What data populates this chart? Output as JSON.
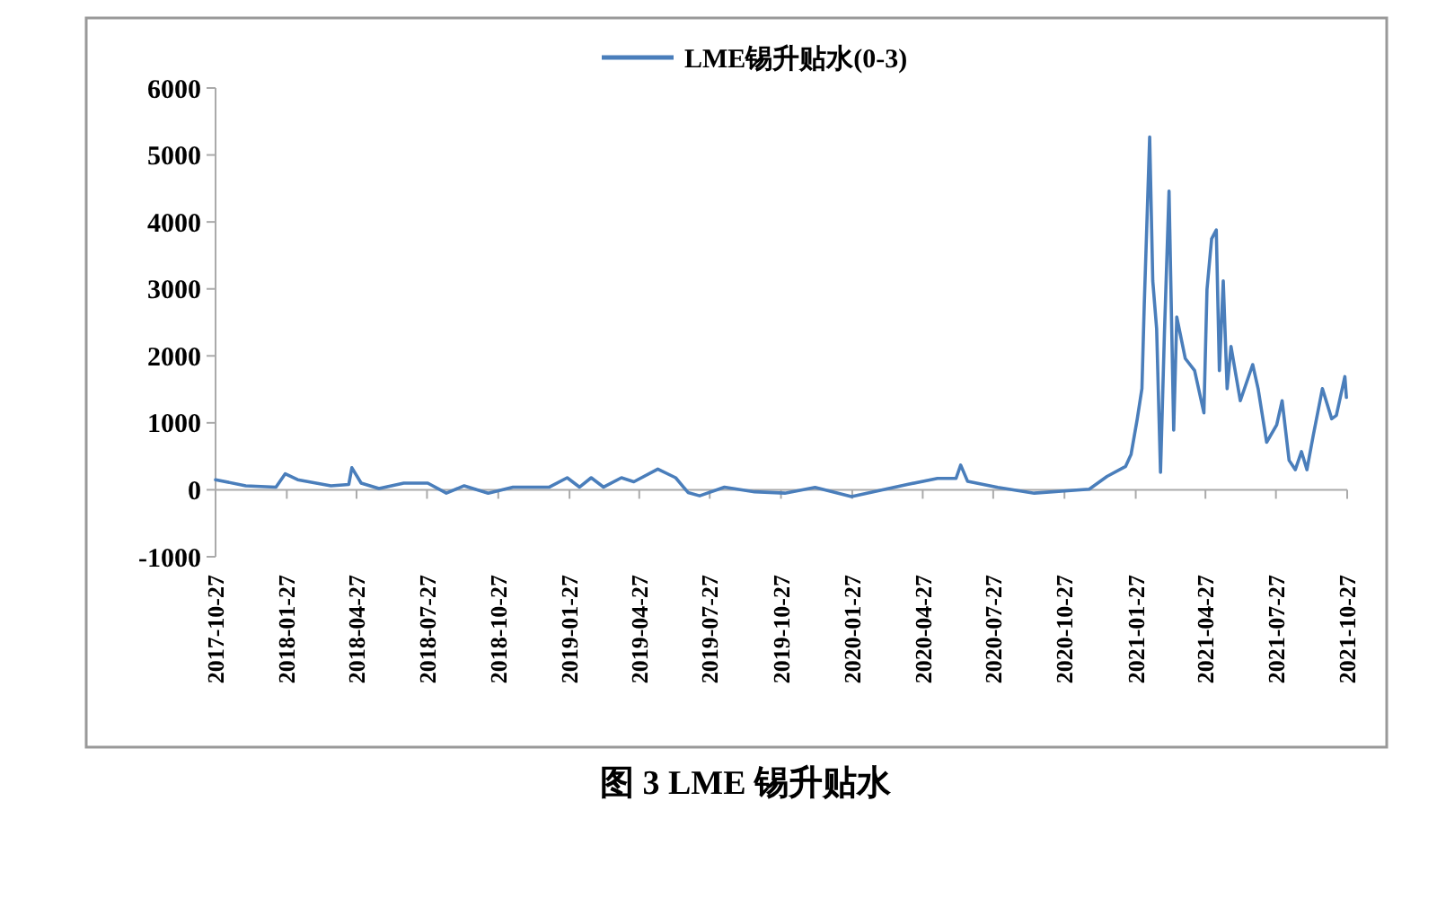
{
  "chart_data": {
    "type": "line",
    "title": "图 3 LME 锡升贴水",
    "legend": "top",
    "xlim": [
      "2017-10-27",
      "2021-10-27"
    ],
    "xticks": [
      "2017-10-27",
      "2018-01-27",
      "2018-04-27",
      "2018-07-27",
      "2018-10-27",
      "2019-01-27",
      "2019-04-27",
      "2019-07-27",
      "2019-10-27",
      "2020-01-27",
      "2020-04-27",
      "2020-07-27",
      "2020-10-27",
      "2021-01-27",
      "2021-04-27",
      "2021-07-27",
      "2021-10-27"
    ],
    "ylim": [
      -1000,
      6000
    ],
    "yticks": [
      -1000,
      0,
      1000,
      2000,
      3000,
      4000,
      5000,
      6000
    ],
    "series": [
      {
        "name": "LME锡升贴水(0-3)",
        "color": "#4a7ebb",
        "x": [
          "2017-10-27",
          "2017-12-05",
          "2018-01-13",
          "2018-01-25",
          "2018-02-10",
          "2018-03-25",
          "2018-04-17",
          "2018-04-21",
          "2018-05-03",
          "2018-05-26",
          "2018-06-27",
          "2018-07-28",
          "2018-08-21",
          "2018-09-13",
          "2018-10-14",
          "2018-11-15",
          "2019-01-01",
          "2019-01-24",
          "2019-02-09",
          "2019-02-24",
          "2019-03-12",
          "2019-04-04",
          "2019-04-20",
          "2019-05-21",
          "2019-06-13",
          "2019-06-29",
          "2019-07-14",
          "2019-08-15",
          "2019-09-23",
          "2019-11-01",
          "2019-12-10",
          "2020-01-26",
          "2020-04-07",
          "2020-05-16",
          "2020-06-09",
          "2020-06-15",
          "2020-06-24",
          "2020-08-02",
          "2020-09-18",
          "2020-11-28",
          "2020-12-21",
          "2021-01-14",
          "2021-01-21",
          "2021-01-29",
          "2021-02-04",
          "2021-02-07",
          "2021-02-14",
          "2021-02-18",
          "2021-02-23",
          "2021-02-28",
          "2021-03-05",
          "2021-03-11",
          "2021-03-17",
          "2021-03-21",
          "2021-04-01",
          "2021-04-13",
          "2021-04-25",
          "2021-04-29",
          "2021-05-05",
          "2021-05-11",
          "2021-05-15",
          "2021-05-20",
          "2021-05-25",
          "2021-05-30",
          "2021-06-11",
          "2021-06-27",
          "2021-07-04",
          "2021-07-15",
          "2021-07-28",
          "2021-08-04",
          "2021-08-13",
          "2021-08-21",
          "2021-08-29",
          "2021-09-05",
          "2021-09-13",
          "2021-09-25",
          "2021-10-07",
          "2021-10-13",
          "2021-10-24",
          "2021-10-26"
        ],
        "values": [
          150,
          60,
          40,
          240,
          150,
          60,
          80,
          330,
          100,
          20,
          100,
          100,
          -50,
          60,
          -50,
          40,
          40,
          180,
          40,
          180,
          40,
          180,
          120,
          310,
          180,
          -40,
          -90,
          40,
          -30,
          -50,
          35,
          -100,
          80,
          170,
          170,
          370,
          125,
          35,
          -50,
          10,
          200,
          350,
          530,
          1060,
          1510,
          2760,
          5270,
          3120,
          2400,
          260,
          2320,
          4460,
          890,
          2580,
          1960,
          1780,
          1150,
          2990,
          3750,
          3880,
          1780,
          3120,
          1510,
          2140,
          1330,
          1870,
          1510,
          710,
          970,
          1330,
          440,
          300,
          570,
          300,
          800,
          1510,
          1060,
          1110,
          1690,
          1380
        ]
      }
    ]
  }
}
